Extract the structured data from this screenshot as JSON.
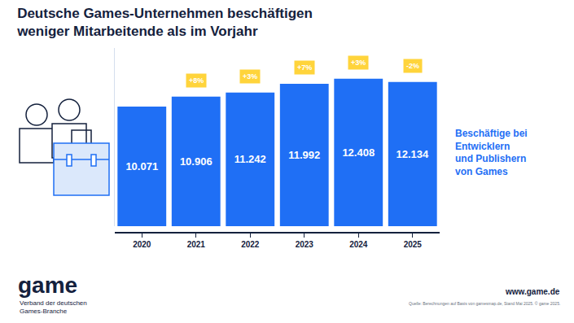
{
  "chart_data": {
    "type": "bar",
    "title": "Deutsche Games-Unternehmen beschäftigen\nweniger Mitarbeitende als im Vorjahr",
    "categories": [
      "2020",
      "2021",
      "2022",
      "2023",
      "2024",
      "2025"
    ],
    "values": [
      10071,
      10906,
      11242,
      11992,
      12408,
      12134
    ],
    "value_labels": [
      "10.071",
      "10.906",
      "11.242",
      "11.992",
      "12.408",
      "12.134"
    ],
    "data_labels": true,
    "color": "#1f6ff5",
    "ylim": [
      0,
      15000
    ],
    "yticks": [],
    "tick_labels": "x",
    "grid": false,
    "annotations": [
      {
        "category": "2021",
        "text": "+8%"
      },
      {
        "category": "2022",
        "text": "+3%"
      },
      {
        "category": "2023",
        "text": "+7%"
      },
      {
        "category": "2024",
        "text": "+3%"
      },
      {
        "category": "2025",
        "text": "-2%"
      }
    ],
    "side_label": "Beschäftige bei\nEntwicklern\nund Publishern\nvon Games"
  },
  "footer": {
    "logo": "game",
    "logo_subtitle": "Verband der deutschen\nGames-Branche",
    "website": "www.game.de",
    "source": "Quelle: Berechnungen auf Basis von gamesmap.de, Stand Mai 2025. © game 2025."
  }
}
